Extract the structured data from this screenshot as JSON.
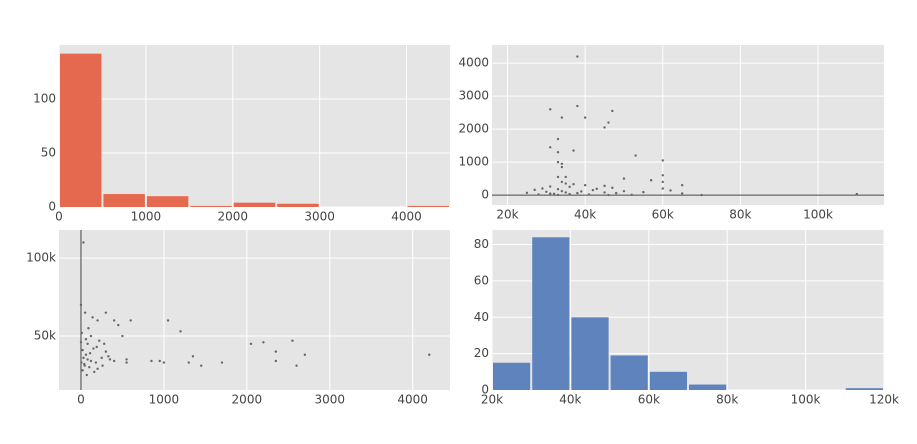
{
  "chart_data": [
    {
      "type": "histogram",
      "bins": [
        0,
        500,
        1000,
        1500,
        2000,
        2500,
        3000,
        3500,
        4000,
        4500
      ],
      "values": [
        142,
        12,
        10,
        1,
        4,
        3,
        0,
        0,
        1
      ],
      "color": "#e5694f",
      "xlim": [
        0,
        4500
      ],
      "ylim": [
        0,
        150
      ],
      "xticks": [
        0,
        1000,
        2000,
        3000,
        4000
      ],
      "yticks": [
        0,
        50,
        100
      ],
      "grid": true
    },
    {
      "type": "scatter",
      "color": "#666666",
      "zeroline": true,
      "x": [
        38000,
        38000,
        31000,
        47000,
        34000,
        40000,
        46000,
        45000,
        33000,
        31000,
        37000,
        33000,
        53000,
        60000,
        33000,
        34000,
        34000,
        60000,
        35000,
        57000,
        60000,
        65000,
        60000,
        110000,
        50000,
        45000,
        42000,
        38000,
        36000,
        33000,
        32000,
        30000,
        28000,
        40000,
        35000,
        47000,
        52000,
        55000,
        62000,
        65000,
        70000,
        27000,
        25000,
        31000,
        34000,
        50000,
        33000,
        36000,
        39000,
        43000,
        46000,
        48000,
        45000,
        34000,
        41000,
        29000,
        35000,
        37000,
        33000,
        31000
      ],
      "y": [
        4200,
        2700,
        2600,
        2550,
        2350,
        2350,
        2200,
        2050,
        1700,
        1450,
        1350,
        1300,
        1200,
        1050,
        1000,
        950,
        850,
        600,
        550,
        450,
        400,
        300,
        200,
        30,
        120,
        80,
        150,
        60,
        250,
        180,
        40,
        100,
        20,
        300,
        350,
        220,
        10,
        90,
        140,
        50,
        0,
        160,
        70,
        260,
        400,
        500,
        550,
        30,
        110,
        190,
        0,
        60,
        280,
        120,
        20,
        200,
        80,
        330,
        5,
        45
      ],
      "xlim": [
        16000,
        117000
      ],
      "ylim": [
        -300,
        4550
      ],
      "xticks": [
        {
          "value": 20000,
          "label": "20k"
        },
        {
          "value": 40000,
          "label": "40k"
        },
        {
          "value": 60000,
          "label": "60k"
        },
        {
          "value": 80000,
          "label": "80k"
        },
        {
          "value": 100000,
          "label": "100k"
        }
      ],
      "yticks": [
        0,
        1000,
        2000,
        3000,
        4000
      ],
      "grid": true
    },
    {
      "type": "scatter",
      "color": "#666666",
      "zeroline": true,
      "x": [
        4200,
        2700,
        2600,
        2550,
        2350,
        2350,
        2200,
        2050,
        1700,
        1450,
        1350,
        1300,
        1200,
        1050,
        1000,
        950,
        850,
        600,
        550,
        450,
        400,
        300,
        200,
        30,
        120,
        80,
        150,
        60,
        250,
        180,
        40,
        100,
        20,
        300,
        350,
        220,
        10,
        90,
        140,
        50,
        0,
        160,
        70,
        260,
        400,
        500,
        550,
        30,
        110,
        190,
        0,
        60,
        280,
        120,
        20,
        200,
        80,
        330,
        5,
        45
      ],
      "y": [
        38000,
        38000,
        31000,
        47000,
        34000,
        40000,
        46000,
        45000,
        33000,
        31000,
        37000,
        33000,
        53000,
        60000,
        33000,
        34000,
        34000,
        60000,
        35000,
        57000,
        60000,
        65000,
        60000,
        110000,
        50000,
        45000,
        42000,
        38000,
        36000,
        33000,
        32000,
        30000,
        28000,
        40000,
        35000,
        47000,
        52000,
        55000,
        62000,
        65000,
        70000,
        27000,
        25000,
        31000,
        34000,
        50000,
        33000,
        36000,
        39000,
        43000,
        46000,
        48000,
        45000,
        34000,
        41000,
        29000,
        35000,
        37000,
        33000,
        31000
      ],
      "xlim": [
        -265,
        4450
      ],
      "ylim": [
        15400,
        118000
      ],
      "xticks": [
        0,
        1000,
        2000,
        3000,
        4000
      ],
      "yticks": [
        {
          "value": 50000,
          "label": "50k"
        },
        {
          "value": 100000,
          "label": "100k"
        }
      ],
      "grid": true
    },
    {
      "type": "histogram",
      "bins": [
        20000,
        30000,
        40000,
        50000,
        60000,
        70000,
        80000,
        90000,
        100000,
        110000,
        120000
      ],
      "values": [
        15,
        84,
        40,
        19,
        10,
        3,
        0,
        0,
        0,
        1
      ],
      "color": "#5f84bd",
      "xlim": [
        20000,
        120000
      ],
      "ylim": [
        0,
        88
      ],
      "xticks": [
        {
          "value": 20000,
          "label": "20k"
        },
        {
          "value": 40000,
          "label": "40k"
        },
        {
          "value": 60000,
          "label": "60k"
        },
        {
          "value": 80000,
          "label": "80k"
        },
        {
          "value": 100000,
          "label": "100k"
        },
        {
          "value": 120000,
          "label": "120k"
        }
      ],
      "yticks": [
        0,
        20,
        40,
        60,
        80
      ],
      "grid": true
    }
  ]
}
